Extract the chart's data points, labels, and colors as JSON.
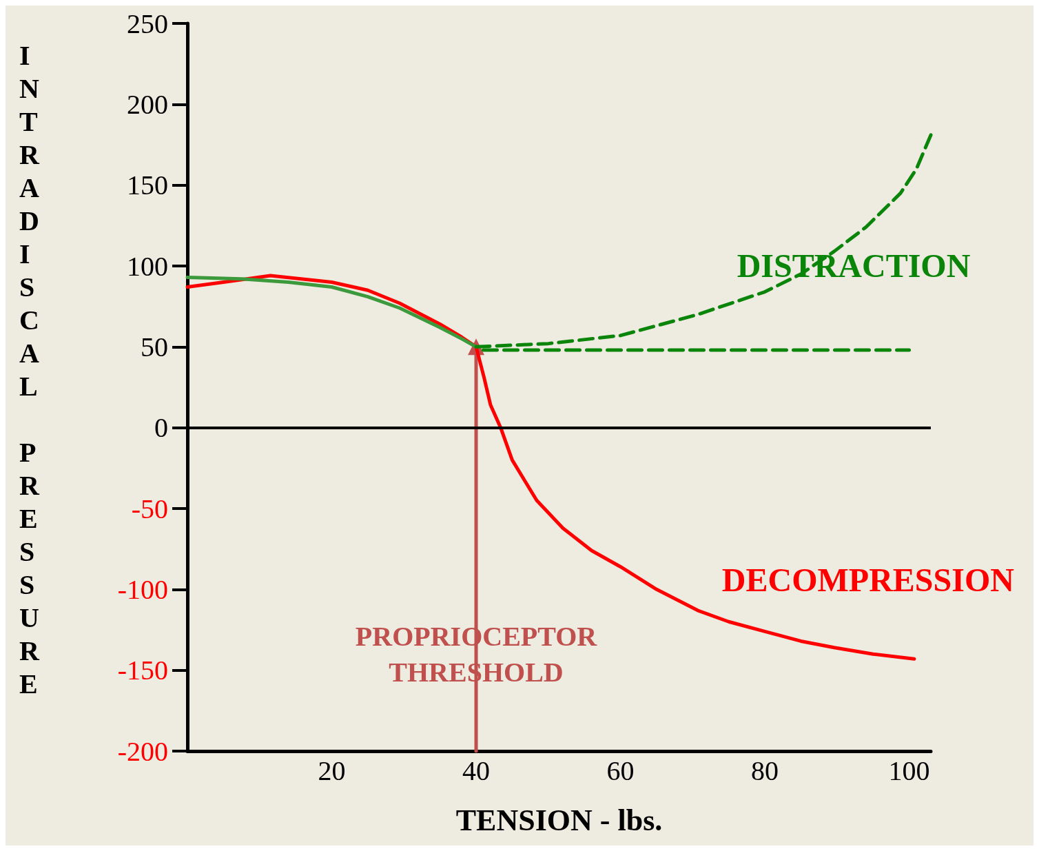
{
  "chart_data": {
    "type": "line",
    "xlabel": "TENSION - lbs.",
    "ylabel": "INTRADISCAL PRESSURE",
    "xlim": [
      0,
      103
    ],
    "xticks": [
      20,
      40,
      60,
      80,
      100
    ],
    "ylim": [
      -200,
      250
    ],
    "yticks": [
      -200,
      -150,
      -100,
      -50,
      0,
      50,
      100,
      150,
      200,
      250
    ],
    "grid": false,
    "marker": "none",
    "series": [
      {
        "name": "DECOMPRESSION",
        "color": "#ff0000",
        "line_style": "solid",
        "x": [
          0,
          5,
          11.5,
          20,
          25,
          29.4,
          35,
          38,
          40,
          41.1,
          42,
          43.4,
          45,
          48.4,
          52,
          56,
          60,
          65,
          70.7,
          75,
          80,
          85,
          89.6,
          95,
          100.7
        ],
        "values": [
          87,
          90,
          94,
          90,
          85,
          77,
          64,
          56,
          50,
          31,
          14,
          0,
          -20,
          -45,
          -62,
          -76,
          -86,
          -100,
          -113,
          -120,
          -126,
          -132,
          -136,
          -140,
          -143
        ]
      },
      {
        "color": "#3c9a3c",
        "line_style": "solid",
        "x": [
          0,
          7.5,
          14,
          20,
          25,
          29.4,
          35,
          38,
          40
        ],
        "values": [
          93,
          92,
          90,
          87,
          81,
          74,
          62,
          55,
          50
        ]
      },
      {
        "color": "#0a850a",
        "line_style": "dashed",
        "x": [
          41,
          100
        ],
        "values": [
          48,
          48
        ]
      },
      {
        "color": "#c0504d",
        "line_style": "solid",
        "marker": "triangle",
        "x": [
          40,
          40
        ],
        "values": [
          -200,
          50
        ]
      },
      {
        "name": "DISTRACTION",
        "color": "#0a850a",
        "line_style": "dashed",
        "x": [
          40,
          50,
          60,
          70.7,
          80,
          85,
          89.6,
          94,
          98.8,
          101,
          103
        ],
        "values": [
          50,
          52,
          57,
          70,
          84,
          95,
          109,
          124,
          145,
          160,
          181
        ]
      }
    ],
    "ref_lines": [
      {
        "axis": "y",
        "value": 0,
        "color": "#000000"
      }
    ],
    "annotations": [
      {
        "text": "PROPRIOCEPTOR THRESHOLD",
        "x": 40,
        "y": -140
      }
    ]
  }
}
